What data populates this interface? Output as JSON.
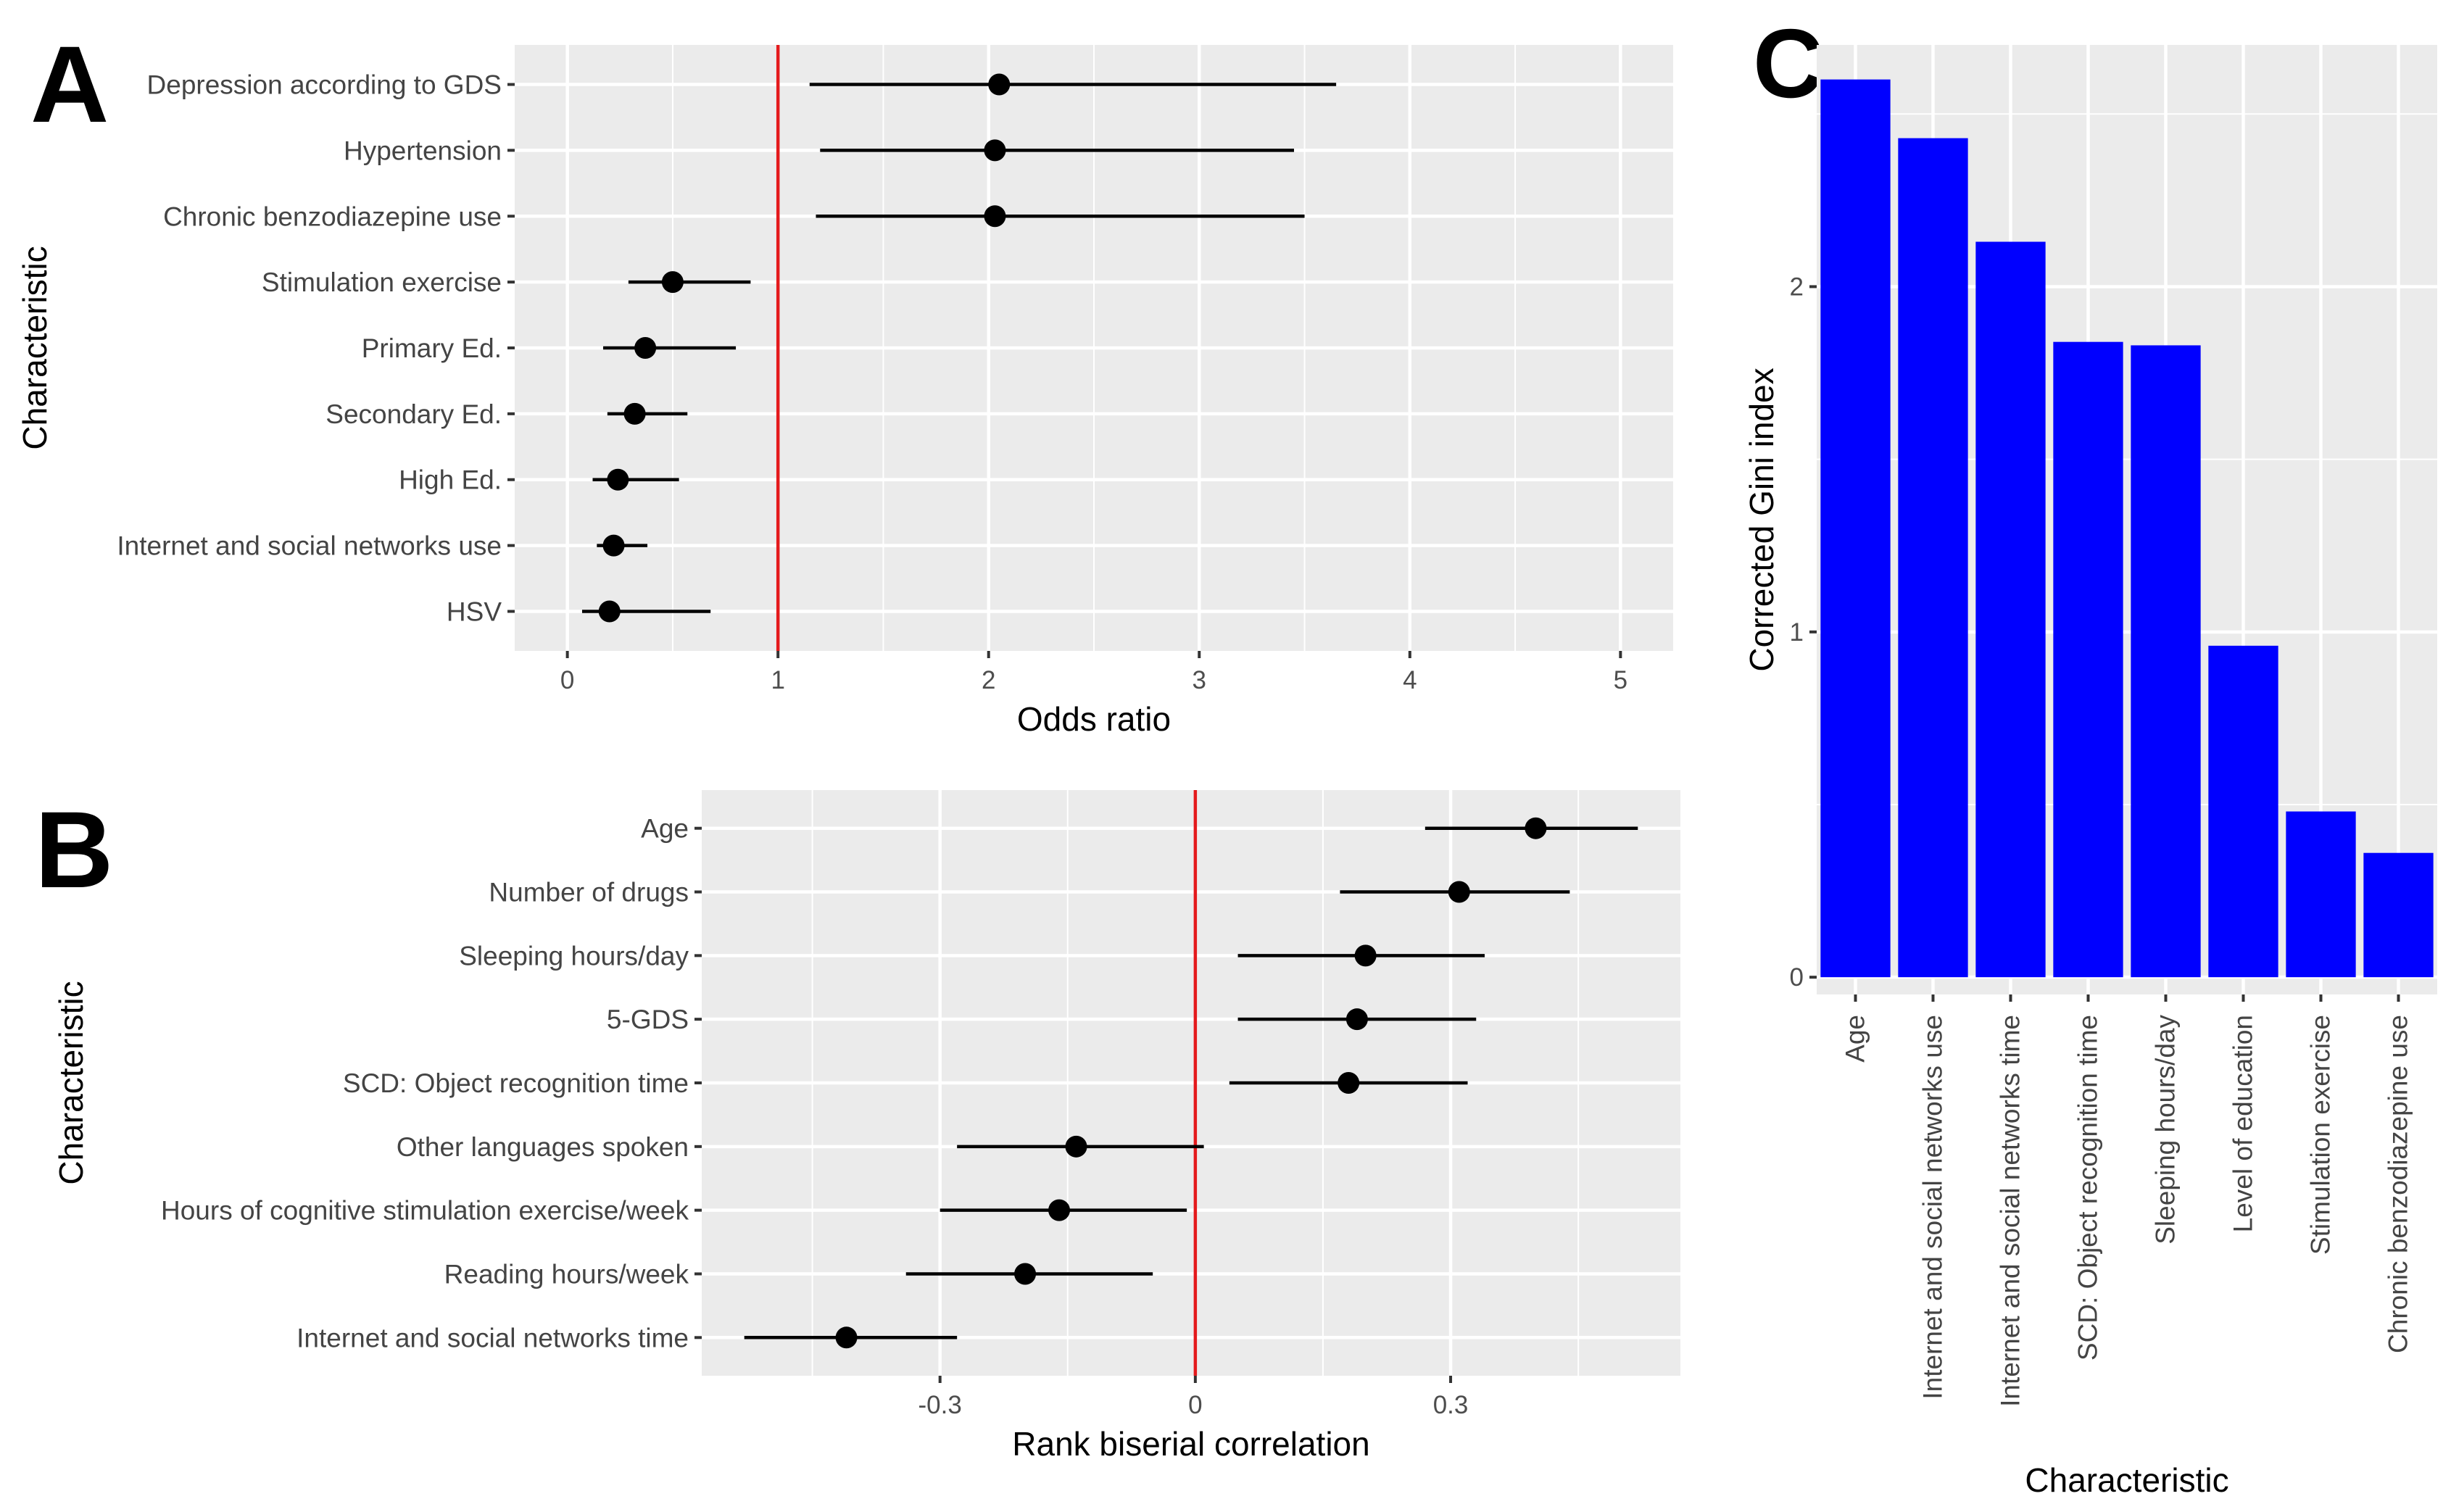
{
  "chart_data": [
    {
      "panel": "A",
      "type": "forest",
      "xlabel": "Odds ratio",
      "ylabel": "Characteristic",
      "xlim": [
        -0.25,
        5.25
      ],
      "xticks": [
        "0",
        "1",
        "2",
        "3",
        "4",
        "5"
      ],
      "xtick_values": [
        0,
        1,
        2,
        3,
        4,
        5
      ],
      "reference_line": 1,
      "reference_color": "#e41a1c",
      "rows": [
        {
          "label": "Depression according to GDS",
          "estimate": 2.05,
          "low": 1.15,
          "high": 3.65
        },
        {
          "label": "Hypertension",
          "estimate": 2.03,
          "low": 1.2,
          "high": 3.45
        },
        {
          "label": "Chronic benzodiazepine use",
          "estimate": 2.03,
          "low": 1.18,
          "high": 3.5
        },
        {
          "label": "Stimulation exercise",
          "estimate": 0.5,
          "low": 0.29,
          "high": 0.87
        },
        {
          "label": "Primary Ed.",
          "estimate": 0.37,
          "low": 0.17,
          "high": 0.8
        },
        {
          "label": "Secondary Ed.",
          "estimate": 0.32,
          "low": 0.19,
          "high": 0.57
        },
        {
          "label": "High Ed.",
          "estimate": 0.24,
          "low": 0.12,
          "high": 0.53
        },
        {
          "label": "Internet and social networks use",
          "estimate": 0.22,
          "low": 0.14,
          "high": 0.38
        },
        {
          "label": "HSV",
          "estimate": 0.2,
          "low": 0.07,
          "high": 0.68
        }
      ]
    },
    {
      "panel": "B",
      "type": "forest",
      "xlabel": "Rank biserial correlation",
      "ylabel": "Characteristic",
      "xlim": [
        -0.58,
        0.57
      ],
      "xticks": [
        "-0.3",
        "0",
        "0.3"
      ],
      "xtick_values": [
        -0.3,
        0,
        0.3
      ],
      "minor_xtick_values": [
        -0.45,
        -0.15,
        0.15,
        0.45
      ],
      "reference_line": 0,
      "reference_color": "#e41a1c",
      "rows": [
        {
          "label": "Age",
          "estimate": 0.4,
          "low": 0.27,
          "high": 0.52
        },
        {
          "label": "Number of drugs",
          "estimate": 0.31,
          "low": 0.17,
          "high": 0.44
        },
        {
          "label": "Sleeping hours/day",
          "estimate": 0.2,
          "low": 0.05,
          "high": 0.34
        },
        {
          "label": "5-GDS",
          "estimate": 0.19,
          "low": 0.05,
          "high": 0.33
        },
        {
          "label": "SCD: Object recognition time",
          "estimate": 0.18,
          "low": 0.04,
          "high": 0.32
        },
        {
          "label": "Other languages spoken",
          "estimate": -0.14,
          "low": -0.28,
          "high": 0.01
        },
        {
          "label": "Hours of cognitive stimulation exercise/week",
          "estimate": -0.16,
          "low": -0.3,
          "high": -0.01
        },
        {
          "label": "Reading hours/week",
          "estimate": -0.2,
          "low": -0.34,
          "high": -0.05
        },
        {
          "label": "Internet and social networks time",
          "estimate": -0.41,
          "low": -0.53,
          "high": -0.28
        }
      ]
    },
    {
      "panel": "C",
      "type": "bar",
      "xlabel": "Characteristic",
      "ylabel": "Corrected Gini index",
      "ylim": [
        -0.05,
        2.7
      ],
      "yticks": [
        "0",
        "1",
        "2"
      ],
      "ytick_values": [
        0,
        1,
        2
      ],
      "bar_color": "#0000ff",
      "categories": [
        "Age",
        "Internet and social networks use",
        "Internet and social networks time",
        "SCD: Object recognition time",
        "Sleeping hours/day",
        "Level of education",
        "Stimulation exercise",
        "Chronic benzodiazepine use"
      ],
      "values": [
        2.6,
        2.43,
        2.13,
        1.84,
        1.83,
        0.96,
        0.48,
        0.36
      ]
    }
  ]
}
